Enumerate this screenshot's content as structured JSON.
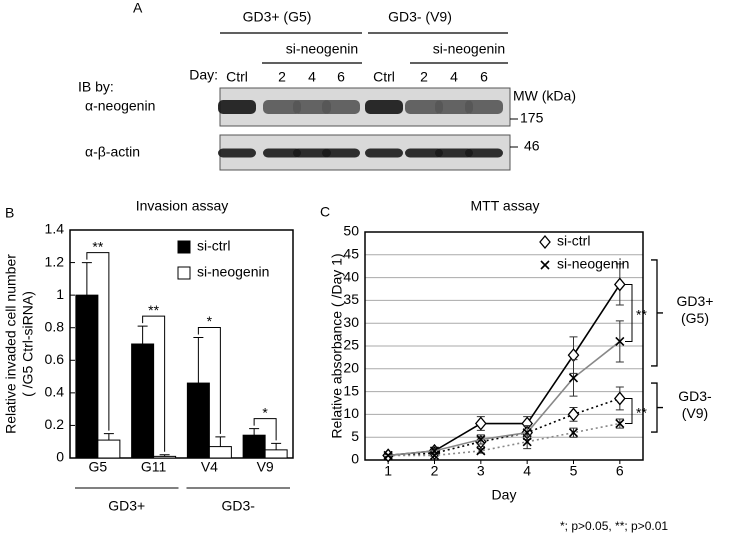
{
  "figure": {
    "panel_label": "A",
    "cell_lines": [
      {
        "label": "GD3+ (G5)",
        "treatment": "si-neogenin",
        "lanes": [
          "Ctrl",
          "2",
          "4",
          "6"
        ]
      },
      {
        "label": "GD3- (V9)",
        "treatment": "si-neogenin",
        "lanes": [
          "Ctrl",
          "2",
          "4",
          "6"
        ]
      }
    ],
    "day_label": "Day:",
    "ib_label": "IB by:",
    "mw_label": "MW (kDa)",
    "blots": [
      {
        "antibody": "α-neogenin",
        "marker": "175"
      },
      {
        "antibody": "α-β-actin",
        "marker": "46"
      }
    ]
  },
  "chart_data": [
    {
      "type": "bar",
      "panel_label": "B",
      "title": "Invasion assay",
      "ylabel": [
        "Relative invaded cell number",
        "( /G5 Ctrl-siRNA)"
      ],
      "categories": [
        "G5",
        "G11",
        "V4",
        "V9"
      ],
      "groups": [
        "GD3+",
        "GD3-"
      ],
      "series": [
        {
          "name": "si-ctrl",
          "color": "#000000",
          "values": [
            1,
            0.7,
            0.46,
            0.14
          ],
          "errors": [
            0.2,
            0.11,
            0.28,
            0.04
          ]
        },
        {
          "name": "si-neogenin",
          "color": "#ffffff",
          "values": [
            0.11,
            0.01,
            0.07,
            0.05
          ],
          "errors": [
            0.04,
            0.01,
            0.06,
            0.04
          ]
        }
      ],
      "significance": [
        "**",
        "**",
        "*",
        "*"
      ],
      "ylim": [
        0,
        1.4
      ],
      "yticks": [
        0,
        0.2,
        0.4,
        0.6,
        0.8,
        1,
        1.2,
        1.4
      ]
    },
    {
      "type": "line",
      "panel_label": "C",
      "title": "MTT assay",
      "xlabel": "Day",
      "ylabel": "Relative absorbance ( /Day 1)",
      "x": [
        1,
        2,
        3,
        4,
        5,
        6
      ],
      "groups": [
        {
          "label": "GD3+ (G5)",
          "dash": "solid",
          "significance": "**"
        },
        {
          "label": "GD3- (V9)",
          "dash": "dotted",
          "significance": "**"
        }
      ],
      "series": [
        {
          "name": "si-ctrl",
          "marker": "diamond",
          "color": "#000000",
          "values": [
            [
              1,
              2,
              8,
              8,
              23,
              38.5
            ],
            [
              1,
              1.5,
              4,
              6,
              10,
              13.5
            ]
          ],
          "errors": [
            [
              0.3,
              0.5,
              1.5,
              1.5,
              4,
              4.5
            ],
            [
              0.2,
              0.3,
              1,
              1.5,
              1.5,
              2.5
            ]
          ]
        },
        {
          "name": "si-neogenin",
          "marker": "x",
          "color": "#888888",
          "values": [
            [
              1,
              2,
              4.5,
              6,
              18,
              26
            ],
            [
              1,
              1,
              2,
              4,
              6,
              8
            ]
          ],
          "errors": [
            [
              0.2,
              0.5,
              1,
              1.5,
              4,
              4.5
            ],
            [
              0.2,
              0.2,
              0.5,
              1.5,
              1,
              1
            ]
          ]
        }
      ],
      "xlim": [
        0.5,
        6.5
      ],
      "xticks": [
        1,
        2,
        3,
        4,
        5,
        6
      ],
      "ylim": [
        0,
        50
      ],
      "yticks": [
        0,
        5,
        10,
        15,
        20,
        25,
        30,
        35,
        40,
        45,
        50
      ],
      "grid": true
    }
  ],
  "footnote": "*; p>0.05, **; p>0.01"
}
